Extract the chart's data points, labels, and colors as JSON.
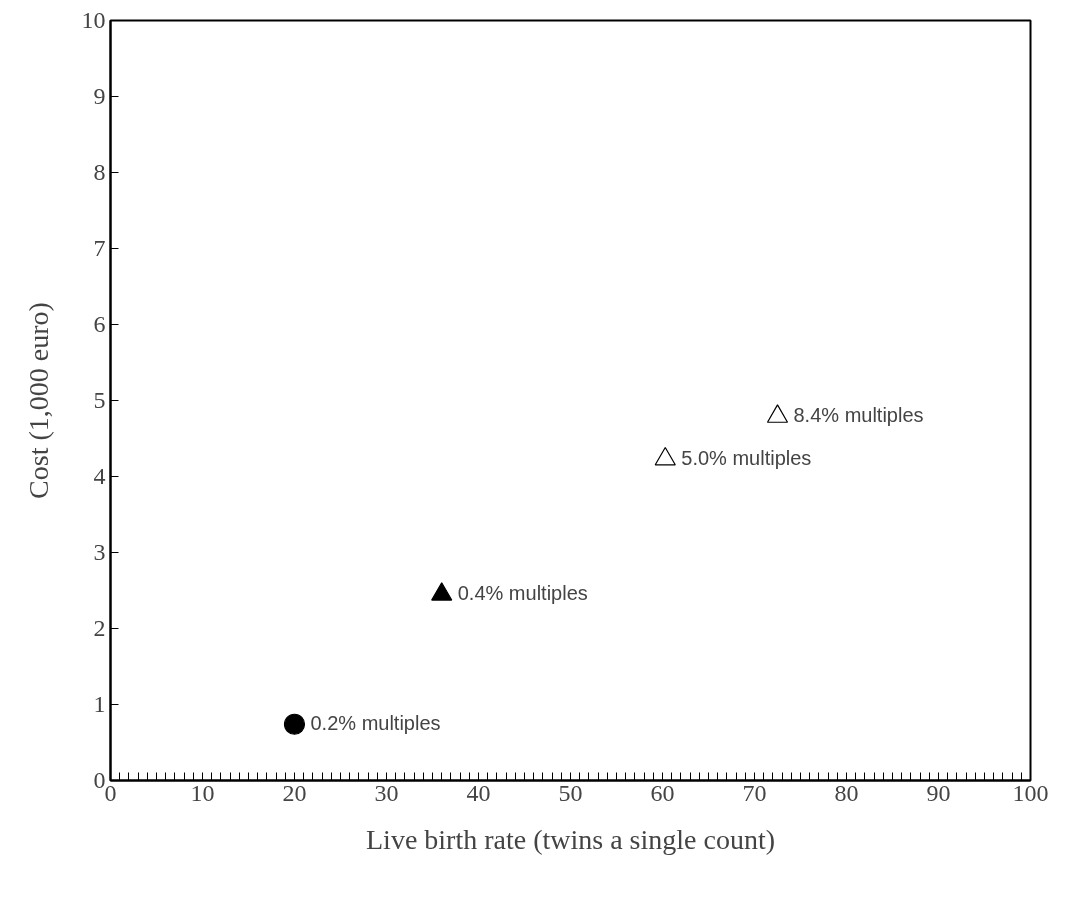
{
  "chart_data": {
    "type": "scatter",
    "xlabel": "Live birth rate (twins a single count)",
    "ylabel": "Cost (1,000 euro)",
    "xlim": [
      0,
      100
    ],
    "ylim": [
      0,
      10
    ],
    "xticks": [
      0,
      10,
      20,
      30,
      40,
      50,
      60,
      70,
      80,
      90,
      100,
      {
        "value": 1,
        "label": null
      },
      {
        "value": 2,
        "label": null
      },
      {
        "value": 3,
        "label": null
      },
      {
        "value": 4,
        "label": null
      },
      {
        "value": 5,
        "label": null
      },
      {
        "value": 6,
        "label": null
      },
      {
        "value": 7,
        "label": null
      },
      {
        "value": 8,
        "label": null
      },
      {
        "value": 9,
        "label": null
      },
      {
        "value": 11,
        "label": null
      },
      {
        "value": 12,
        "label": null
      },
      {
        "value": 13,
        "label": null
      },
      {
        "value": 14,
        "label": null
      },
      {
        "value": 15,
        "label": null
      },
      {
        "value": 16,
        "label": null
      },
      {
        "value": 17,
        "label": null
      },
      {
        "value": 18,
        "label": null
      },
      {
        "value": 19,
        "label": null
      },
      {
        "value": 21,
        "label": null
      },
      {
        "value": 22,
        "label": null
      },
      {
        "value": 23,
        "label": null
      },
      {
        "value": 24,
        "label": null
      },
      {
        "value": 25,
        "label": null
      },
      {
        "value": 26,
        "label": null
      },
      {
        "value": 27,
        "label": null
      },
      {
        "value": 28,
        "label": null
      },
      {
        "value": 29,
        "label": null
      },
      {
        "value": 31,
        "label": null
      },
      {
        "value": 32,
        "label": null
      },
      {
        "value": 33,
        "label": null
      },
      {
        "value": 34,
        "label": null
      },
      {
        "value": 35,
        "label": null
      },
      {
        "value": 36,
        "label": null
      },
      {
        "value": 37,
        "label": null
      },
      {
        "value": 38,
        "label": null
      },
      {
        "value": 39,
        "label": null
      },
      {
        "value": 41,
        "label": null
      },
      {
        "value": 42,
        "label": null
      },
      {
        "value": 43,
        "label": null
      },
      {
        "value": 44,
        "label": null
      },
      {
        "value": 45,
        "label": null
      },
      {
        "value": 46,
        "label": null
      },
      {
        "value": 47,
        "label": null
      },
      {
        "value": 48,
        "label": null
      },
      {
        "value": 49,
        "label": null
      },
      {
        "value": 51,
        "label": null
      },
      {
        "value": 52,
        "label": null
      },
      {
        "value": 53,
        "label": null
      },
      {
        "value": 54,
        "label": null
      },
      {
        "value": 55,
        "label": null
      },
      {
        "value": 56,
        "label": null
      },
      {
        "value": 57,
        "label": null
      },
      {
        "value": 58,
        "label": null
      },
      {
        "value": 59,
        "label": null
      },
      {
        "value": 61,
        "label": null
      },
      {
        "value": 62,
        "label": null
      },
      {
        "value": 63,
        "label": null
      },
      {
        "value": 64,
        "label": null
      },
      {
        "value": 65,
        "label": null
      },
      {
        "value": 66,
        "label": null
      },
      {
        "value": 67,
        "label": null
      },
      {
        "value": 68,
        "label": null
      },
      {
        "value": 69,
        "label": null
      },
      {
        "value": 71,
        "label": null
      },
      {
        "value": 72,
        "label": null
      },
      {
        "value": 73,
        "label": null
      },
      {
        "value": 74,
        "label": null
      },
      {
        "value": 75,
        "label": null
      },
      {
        "value": 76,
        "label": null
      },
      {
        "value": 77,
        "label": null
      },
      {
        "value": 78,
        "label": null
      },
      {
        "value": 79,
        "label": null
      },
      {
        "value": 81,
        "label": null
      },
      {
        "value": 82,
        "label": null
      },
      {
        "value": 83,
        "label": null
      },
      {
        "value": 84,
        "label": null
      },
      {
        "value": 85,
        "label": null
      },
      {
        "value": 86,
        "label": null
      },
      {
        "value": 87,
        "label": null
      },
      {
        "value": 88,
        "label": null
      },
      {
        "value": 89,
        "label": null
      },
      {
        "value": 91,
        "label": null
      },
      {
        "value": 92,
        "label": null
      },
      {
        "value": 93,
        "label": null
      },
      {
        "value": 94,
        "label": null
      },
      {
        "value": 95,
        "label": null
      },
      {
        "value": 96,
        "label": null
      },
      {
        "value": 97,
        "label": null
      },
      {
        "value": 98,
        "label": null
      },
      {
        "value": 99,
        "label": null
      }
    ],
    "yticks": [
      0,
      1,
      2,
      3,
      4,
      5,
      6,
      7,
      8,
      9,
      10
    ],
    "grid": false,
    "legend": false,
    "series": [
      {
        "name": "0.2% multiples",
        "color": "#000000",
        "x": [
          20
        ],
        "values": [
          0.74
        ],
        "marker": "circle"
      },
      {
        "name": "0.4% multiples",
        "color": "#000000",
        "x": [
          36
        ],
        "values": [
          2.45
        ],
        "marker": "triangle"
      },
      {
        "name": "5.0% multiples",
        "color": "#ffffff",
        "x": [
          60.3
        ],
        "values": [
          4.23
        ],
        "marker": "triangle"
      },
      {
        "name": "8.4% multiples",
        "color": "#ffffff",
        "x": [
          72.5
        ],
        "values": [
          4.79
        ],
        "marker": "triangle"
      }
    ]
  }
}
